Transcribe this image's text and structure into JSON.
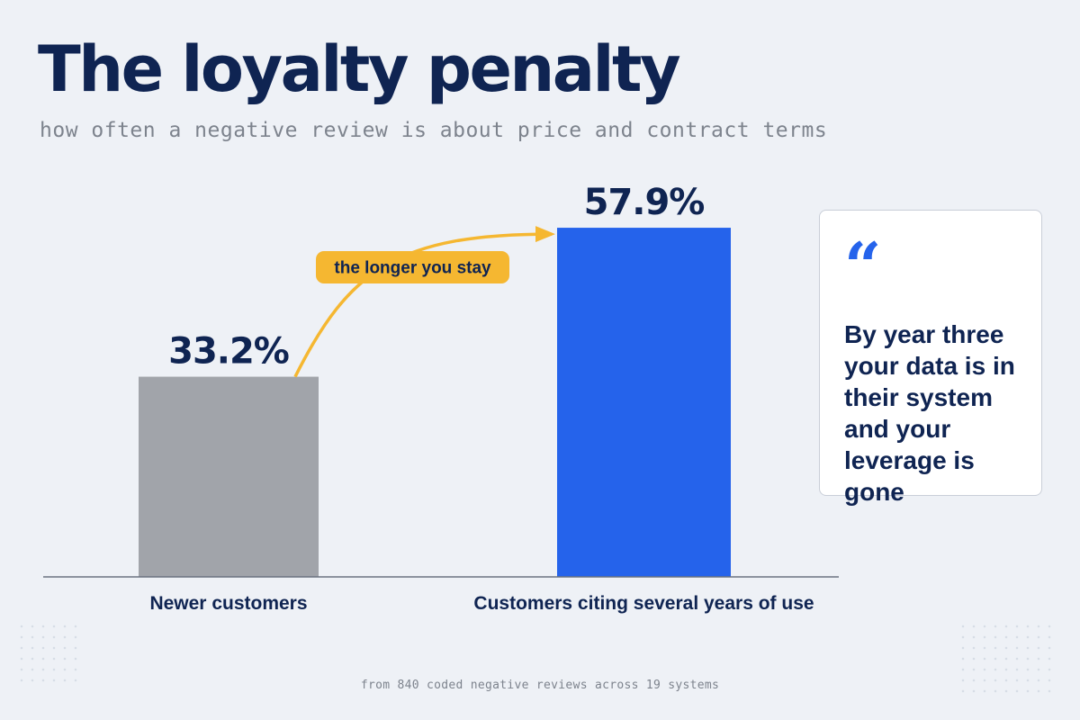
{
  "header": {
    "title": "The loyalty penalty",
    "subtitle": "how often a negative review is about price and contract terms"
  },
  "chart_data": {
    "type": "bar",
    "categories": [
      "Newer customers",
      "Customers citing several years of use"
    ],
    "values": [
      33.2,
      57.9
    ],
    "value_labels": [
      "33.2%",
      "57.9%"
    ],
    "colors": [
      "#a1a4aa",
      "#2563eb"
    ],
    "ylim": [
      0,
      70
    ],
    "grid": false,
    "annotation": {
      "text": "the longer you stay",
      "color": "#f5b731"
    }
  },
  "quote": {
    "icon": "quote-mark-icon",
    "mark": "“",
    "text": "By year three your data is in their system and your leverage is gone"
  },
  "footnote": "from 840 coded negative reviews across 19 systems"
}
